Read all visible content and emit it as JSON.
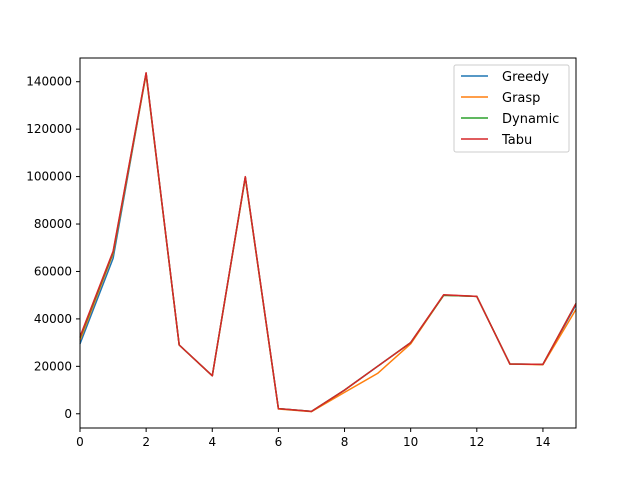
{
  "chart_data": {
    "type": "line",
    "title": "",
    "xlabel": "",
    "ylabel": "",
    "xlim": [
      0,
      15
    ],
    "ylim": [
      -6000,
      150000
    ],
    "grid": false,
    "legend_placement": "top-right",
    "x": [
      0,
      1,
      2,
      3,
      4,
      5,
      6,
      7,
      8,
      9,
      10,
      11,
      12,
      13,
      14,
      15
    ],
    "x_ticks": [
      0,
      2,
      4,
      6,
      8,
      10,
      12,
      14
    ],
    "x_tick_labels": [
      "0",
      "2",
      "4",
      "6",
      "8",
      "10",
      "12",
      "14"
    ],
    "y_ticks": [
      0,
      20000,
      40000,
      60000,
      80000,
      100000,
      120000,
      140000
    ],
    "y_tick_labels": [
      "0",
      "20000",
      "40000",
      "60000",
      "80000",
      "100000",
      "120000",
      "140000"
    ],
    "series": [
      {
        "name": "Greedy",
        "color": "#1f77b4",
        "values": [
          29500,
          65500,
          143500,
          29000,
          16000,
          99800,
          2200,
          1000,
          10000,
          20000,
          30000,
          50000,
          49500,
          21000,
          20800,
          46000
        ]
      },
      {
        "name": "Grasp",
        "color": "#ff7f0e",
        "values": [
          31000,
          67500,
          143000,
          29000,
          16000,
          99500,
          2000,
          900,
          9000,
          17000,
          29500,
          50000,
          49500,
          21000,
          20700,
          44000
        ]
      },
      {
        "name": "Dynamic",
        "color": "#2ca02c",
        "values": [
          32000,
          68000,
          143500,
          29000,
          16000,
          99800,
          2200,
          1000,
          10000,
          20000,
          30000,
          50000,
          49500,
          21000,
          20800,
          46500
        ]
      },
      {
        "name": "Tabu",
        "color": "#d62728",
        "values": [
          32500,
          68500,
          143800,
          29000,
          16000,
          100000,
          2200,
          1000,
          10000,
          20000,
          30000,
          50200,
          49500,
          21000,
          20800,
          46500
        ]
      }
    ]
  }
}
